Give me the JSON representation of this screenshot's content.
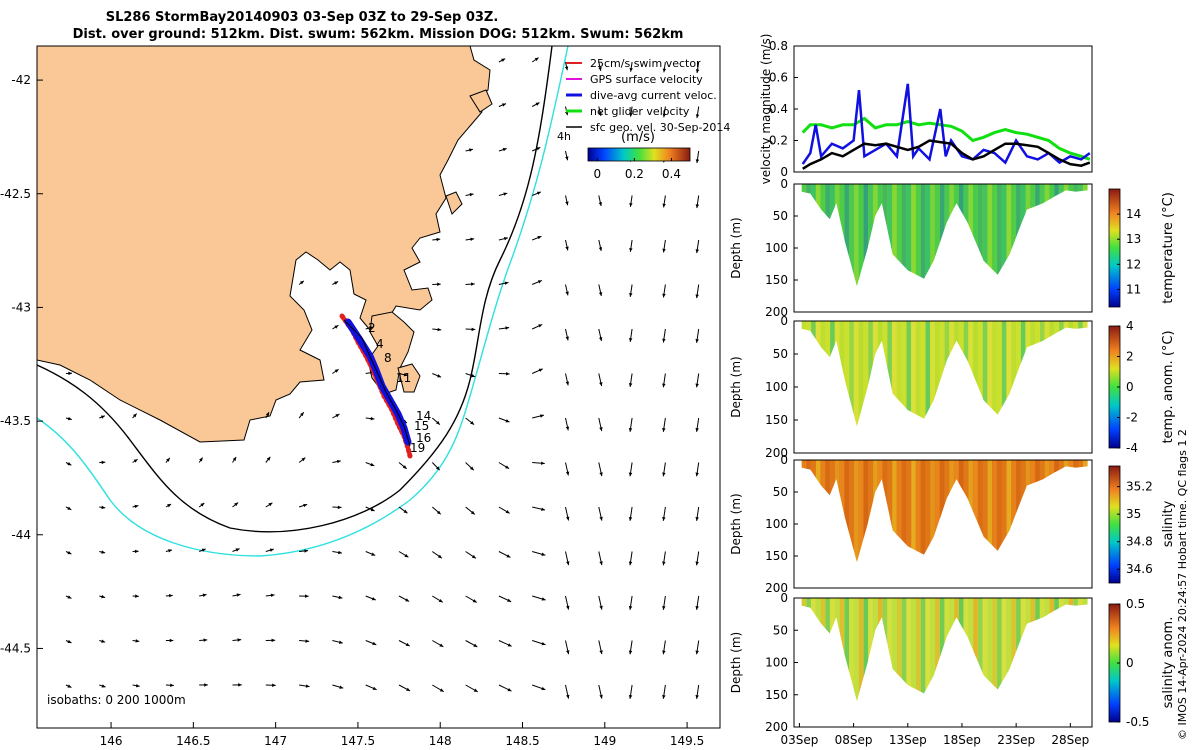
{
  "title": {
    "line1": "SL286 StormBay20140903 03-Sep 03Z to 29-Sep 03Z.",
    "line2": "Dist. over ground: 512km. Dist. swum: 562km. Mission DOG: 512km. Swum: 562km"
  },
  "credit": "© IMOS 14-Apr-2024 20:24:57 Hobart time. QC flags 1  2",
  "colors": {
    "land": "#f9c896",
    "isobath_200": "#000000",
    "isobath_1000": "#2ee0e0",
    "track": "#e02020",
    "dive_avg": "#1010e0",
    "net_velocity": "#10e010",
    "sfc_geo": "#000000",
    "gps": "#e010e0"
  },
  "chart_data": [
    {
      "type": "map",
      "xlim": [
        145.55,
        149.7
      ],
      "ylim": [
        -44.85,
        -41.85
      ],
      "x_ticks": [
        "146",
        "146.5",
        "147",
        "147.5",
        "148",
        "148.5",
        "149",
        "149.5"
      ],
      "x_tick_values": [
        146,
        146.5,
        147,
        147.5,
        148,
        148.5,
        149,
        149.5
      ],
      "y_ticks": [
        "-42",
        "-42.5",
        "-43",
        "-43.5",
        "-44",
        "-44.5"
      ],
      "y_tick_values": [
        -42,
        -42.5,
        -43,
        -43.5,
        -44,
        -44.5
      ],
      "legend": [
        "25cm/s swim vector",
        "GPS surface velocity",
        "dive-avg current veloc.",
        "net glider velocity",
        "sfc geo. vel. 30-Sep-2014"
      ],
      "legend_extra": "4h",
      "colorbar": {
        "label": "(m/s)",
        "ticks": [
          "0",
          "0.2",
          "0.4"
        ],
        "tick_values": [
          0,
          0.2,
          0.4
        ],
        "range": [
          -0.05,
          0.5
        ]
      },
      "isobath_note": "isobaths: 0   200  1000m",
      "track_numbers": [
        "14",
        "15",
        "16",
        "19",
        "11",
        "8",
        "4",
        "2"
      ]
    },
    {
      "type": "line",
      "ylabel": "velocity magnitude (m/s)",
      "ylim": [
        0,
        0.8
      ],
      "y_ticks": [
        "0",
        "0.2",
        "0.4",
        "0.6",
        "0.8"
      ],
      "y_tick_values": [
        0,
        0.2,
        0.4,
        0.6,
        0.8
      ],
      "xlim": [
        2.5,
        30.0
      ],
      "series": [
        {
          "values": [
            [
              3.3,
              0.25
            ],
            [
              4,
              0.3
            ],
            [
              5,
              0.3
            ],
            [
              6,
              0.28
            ],
            [
              7,
              0.3
            ],
            [
              8,
              0.3
            ],
            [
              9,
              0.34
            ],
            [
              10,
              0.28
            ],
            [
              11,
              0.3
            ],
            [
              12,
              0.3
            ],
            [
              13,
              0.32
            ],
            [
              14,
              0.3
            ],
            [
              15,
              0.31
            ],
            [
              16,
              0.3
            ],
            [
              17,
              0.29
            ],
            [
              18,
              0.26
            ],
            [
              19,
              0.2
            ],
            [
              20,
              0.22
            ],
            [
              21,
              0.25
            ],
            [
              22,
              0.27
            ],
            [
              23,
              0.25
            ],
            [
              24,
              0.24
            ],
            [
              25,
              0.22
            ],
            [
              26,
              0.2
            ],
            [
              27,
              0.15
            ],
            [
              28,
              0.12
            ],
            [
              29,
              0.1
            ],
            [
              29.8,
              0.08
            ]
          ]
        },
        {
          "values": [
            [
              3.3,
              0.05
            ],
            [
              4,
              0.12
            ],
            [
              4.5,
              0.3
            ],
            [
              5,
              0.1
            ],
            [
              6,
              0.18
            ],
            [
              7,
              0.15
            ],
            [
              8,
              0.2
            ],
            [
              8.5,
              0.52
            ],
            [
              9,
              0.1
            ],
            [
              10,
              0.14
            ],
            [
              11,
              0.18
            ],
            [
              12,
              0.1
            ],
            [
              13,
              0.56
            ],
            [
              13.5,
              0.1
            ],
            [
              14,
              0.15
            ],
            [
              15,
              0.08
            ],
            [
              16,
              0.4
            ],
            [
              16.5,
              0.1
            ],
            [
              17,
              0.2
            ],
            [
              18,
              0.1
            ],
            [
              19,
              0.08
            ],
            [
              20,
              0.14
            ],
            [
              21,
              0.12
            ],
            [
              22,
              0.06
            ],
            [
              23,
              0.2
            ],
            [
              24,
              0.1
            ],
            [
              25,
              0.08
            ],
            [
              26,
              0.12
            ],
            [
              27,
              0.06
            ],
            [
              28,
              0.1
            ],
            [
              29,
              0.08
            ],
            [
              29.8,
              0.12
            ]
          ]
        },
        {
          "values": [
            [
              3.3,
              0.02
            ],
            [
              4,
              0.05
            ],
            [
              5,
              0.08
            ],
            [
              6,
              0.12
            ],
            [
              7,
              0.1
            ],
            [
              8,
              0.14
            ],
            [
              9,
              0.18
            ],
            [
              10,
              0.17
            ],
            [
              11,
              0.18
            ],
            [
              12,
              0.16
            ],
            [
              13,
              0.14
            ],
            [
              14,
              0.16
            ],
            [
              15,
              0.2
            ],
            [
              16,
              0.19
            ],
            [
              17,
              0.18
            ],
            [
              18,
              0.12
            ],
            [
              19,
              0.08
            ],
            [
              20,
              0.1
            ],
            [
              21,
              0.14
            ],
            [
              22,
              0.18
            ],
            [
              23,
              0.18
            ],
            [
              24,
              0.17
            ],
            [
              25,
              0.16
            ],
            [
              26,
              0.12
            ],
            [
              27,
              0.08
            ],
            [
              28,
              0.05
            ],
            [
              29,
              0.04
            ],
            [
              29.8,
              0.06
            ]
          ]
        }
      ]
    },
    {
      "type": "heatmap",
      "ylabel": "Depth (m)",
      "colorbar_label": "temperature (°C)",
      "colorbar_ticks": [
        "11",
        "12",
        "13",
        "14"
      ],
      "colorbar_tick_values": [
        11,
        12,
        13,
        14
      ],
      "clim": [
        10.3,
        15.0
      ],
      "ylim": [
        0,
        200
      ],
      "y_ticks": [
        "0",
        "50",
        "100",
        "150",
        "200"
      ],
      "y_tick_values": [
        0,
        50,
        100,
        150,
        200
      ]
    },
    {
      "type": "heatmap",
      "ylabel": "Depth (m)",
      "colorbar_label": "temp. anom. (°C)",
      "colorbar_ticks": [
        "-4",
        "-2",
        "0",
        "2",
        "4"
      ],
      "colorbar_tick_values": [
        -4,
        -2,
        0,
        2,
        4
      ],
      "clim": [
        -4,
        4
      ],
      "ylim": [
        0,
        200
      ],
      "y_ticks": [
        "0",
        "50",
        "100",
        "150",
        "200"
      ],
      "y_tick_values": [
        0,
        50,
        100,
        150,
        200
      ]
    },
    {
      "type": "heatmap",
      "ylabel": "Depth (m)",
      "colorbar_label": "salinity",
      "colorbar_ticks": [
        "34.6",
        "34.8",
        "35",
        "35.2"
      ],
      "colorbar_tick_values": [
        34.6,
        34.8,
        35.0,
        35.2
      ],
      "clim": [
        34.5,
        35.35
      ],
      "ylim": [
        0,
        200
      ],
      "y_ticks": [
        "0",
        "50",
        "100",
        "150",
        "200"
      ],
      "y_tick_values": [
        0,
        50,
        100,
        150,
        200
      ]
    },
    {
      "type": "heatmap",
      "ylabel": "Depth (m)",
      "colorbar_label": "salinity anom.",
      "colorbar_ticks": [
        "-0.5",
        "0",
        "0.5"
      ],
      "colorbar_tick_values": [
        -0.5,
        0,
        0.5
      ],
      "clim": [
        -0.5,
        0.5
      ],
      "ylim": [
        0,
        200
      ],
      "y_ticks": [
        "0",
        "50",
        "100",
        "150",
        "200"
      ],
      "y_tick_values": [
        0,
        50,
        100,
        150,
        200
      ],
      "x_ticks": [
        "03Sep",
        "08Sep",
        "13Sep",
        "18Sep",
        "23Sep",
        "28Sep"
      ],
      "x_tick_values": [
        3,
        8,
        13,
        18,
        23,
        28
      ],
      "xlim": [
        2.5,
        30.0
      ]
    }
  ]
}
